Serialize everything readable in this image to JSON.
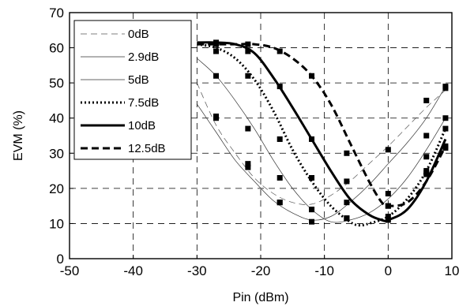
{
  "chart_data": {
    "type": "line",
    "title": "",
    "xlabel": "Pin (dBm)",
    "ylabel": "EVM (%)",
    "xlim": [
      -50,
      10
    ],
    "ylim": [
      0,
      70
    ],
    "xticks": [
      -50,
      -40,
      -30,
      -20,
      -10,
      0,
      10
    ],
    "yticks": [
      0,
      10,
      20,
      30,
      40,
      50,
      60,
      70
    ],
    "grid": true,
    "legend_position": "top-left",
    "series": [
      {
        "name": "0dB",
        "style": "thin-dashed",
        "color": "#000000",
        "x": [
          -30,
          -27,
          -24,
          -21,
          -18,
          -15,
          -12,
          -9,
          -6,
          -3,
          0,
          3,
          6,
          9
        ],
        "y": [
          50,
          38,
          30,
          23,
          18.5,
          16,
          15.5,
          18,
          22,
          27,
          32,
          37.5,
          43,
          48
        ],
        "markers_x": [
          -27,
          -22,
          -17,
          -12,
          -6.5,
          0,
          6,
          9
        ],
        "markers_y": [
          40,
          26,
          16,
          14,
          16,
          31,
          45,
          49
        ]
      },
      {
        "name": "2.9dB",
        "style": "thin-solid",
        "color": "#000000",
        "x": [
          -30,
          -27,
          -24,
          -21,
          -18,
          -15,
          -12,
          -9,
          -6,
          -3,
          0,
          3,
          6,
          9
        ],
        "y": [
          44,
          36,
          28,
          22,
          16.5,
          13,
          11,
          12,
          16,
          21,
          27,
          33,
          40,
          49
        ],
        "markers_x": [
          -27,
          -22,
          -17,
          -12,
          -6.5,
          0,
          6,
          9
        ],
        "markers_y": [
          40.5,
          27,
          16,
          10.5,
          11.5,
          18.5,
          35,
          48.5
        ]
      },
      {
        "name": "5dB",
        "style": "thin-solid",
        "color": "#000000",
        "x": [
          -30,
          -27,
          -24,
          -21,
          -18,
          -15,
          -12,
          -9,
          -6,
          -3,
          0,
          3,
          6,
          9
        ],
        "y": [
          57,
          52,
          45,
          37,
          28,
          20,
          14,
          10.5,
          11,
          13,
          17,
          23,
          31,
          40
        ],
        "markers_x": [
          -27,
          -22,
          -17,
          -12,
          -6.5,
          0,
          6,
          9
        ],
        "markers_y": [
          52,
          37,
          23,
          14,
          11.5,
          15,
          29,
          40
        ]
      },
      {
        "name": "7.5dB",
        "style": "dotted",
        "color": "#000000",
        "x": [
          -30,
          -27,
          -24,
          -21,
          -18,
          -15,
          -12,
          -9,
          -6,
          -4.5,
          -3,
          0,
          3,
          6,
          9
        ],
        "y": [
          61,
          60,
          57,
          51,
          42,
          31,
          22,
          15,
          10.5,
          9.5,
          10,
          12,
          17,
          25,
          37
        ],
        "markers_x": [
          -27,
          -22,
          -17,
          -12,
          -6.5,
          0,
          6,
          9
        ],
        "markers_y": [
          59,
          52,
          34,
          23,
          11.5,
          12,
          24.5,
          37
        ]
      },
      {
        "name": "10dB",
        "style": "thick-solid",
        "color": "#000000",
        "x": [
          -30,
          -27,
          -24,
          -21,
          -18,
          -15,
          -12,
          -9,
          -6,
          -3,
          -1,
          0,
          3,
          6,
          9
        ],
        "y": [
          61.5,
          61.5,
          61,
          58.5,
          51.5,
          43,
          34,
          25,
          17,
          12.5,
          11,
          11,
          14,
          22,
          34
        ],
        "markers_x": [
          -27,
          -22,
          -17,
          -12,
          -6.5,
          0,
          6,
          9
        ],
        "markers_y": [
          61,
          59,
          49,
          34,
          22,
          11,
          25,
          32
        ]
      },
      {
        "name": "12.5dB",
        "style": "thick-dashed",
        "color": "#000000",
        "x": [
          -30,
          -27,
          -24,
          -21,
          -18,
          -15,
          -12,
          -9,
          -6,
          -3,
          -1,
          0,
          3,
          6,
          9
        ],
        "y": [
          61,
          61,
          61,
          61,
          60,
          57,
          52,
          44,
          33,
          22,
          16,
          15,
          16,
          22,
          32
        ],
        "markers_x": [
          -27,
          -22,
          -17,
          -12,
          -6.5,
          0,
          6,
          9
        ],
        "markers_y": [
          61.5,
          61,
          59,
          52,
          30,
          15,
          24,
          31.5
        ]
      }
    ]
  }
}
